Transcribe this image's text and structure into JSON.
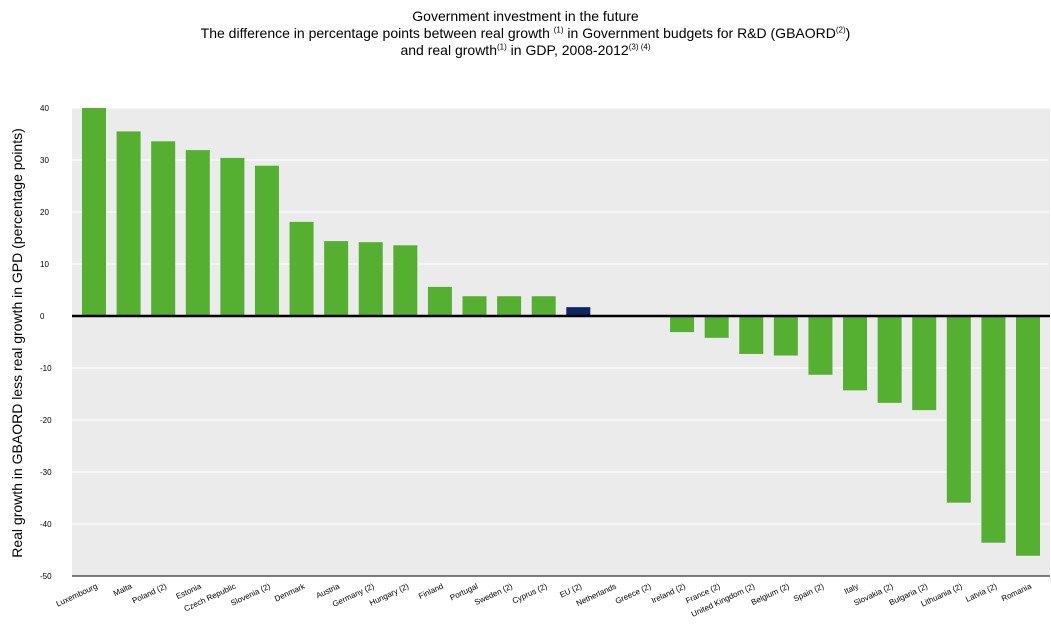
{
  "title": {
    "line1": "Government investment in the future",
    "line2_a": "The difference in percentage points between real growth",
    "line2_sup1": "(1)",
    "line2_b": "in Government budgets for R&D (GBAORD",
    "line2_sup2": "(2)",
    "line2_c": ")",
    "line3_a": "and real growth",
    "line3_sup1": "(1)",
    "line3_b": "in GDP, 2008-2012",
    "line3_sup2": "(3) (4)"
  },
  "chart_data": {
    "type": "bar",
    "ylabel": "Real growth in GBAORD less real growth in GPD (percentage points)",
    "ylim": [
      -50,
      40
    ],
    "yticks": [
      40,
      30,
      20,
      10,
      0,
      -10,
      -20,
      -30,
      -40,
      -50
    ],
    "grid": true,
    "categories": [
      "Luxembourg",
      "Malta",
      "Poland (2)",
      "Estonia",
      "Czech Republic",
      "Slovenia (2)",
      "Denmark",
      "Austria",
      "Germany (2)",
      "Hungary (2)",
      "Finland",
      "Portugal",
      "Sweden (2)",
      "Cyprus (2)",
      "EU (2)",
      "Netherlands",
      "Greece (2)",
      "Ireland (2)",
      "France (2)",
      "United Kingdom (2)",
      "Belgium (2)",
      "Spain (2)",
      "Italy",
      "Slovakia (2)",
      "Bulgaria (2)",
      "Lithuania (2)",
      "Latvia (2)",
      "Romania"
    ],
    "values": [
      40,
      35.5,
      33.6,
      31.9,
      30.4,
      28.9,
      18.1,
      14.4,
      14.2,
      13.6,
      5.6,
      3.8,
      3.8,
      3.8,
      1.7,
      0,
      -0.2,
      -3.1,
      -4.2,
      -7.3,
      -7.6,
      -11.3,
      -14.3,
      -16.7,
      -18.1,
      -35.9,
      -43.6,
      -46.1
    ],
    "colors": {
      "default": "#55b031",
      "highlight": "#0d2466",
      "highlight_category": "EU (2)",
      "plot_background": "#ebebeb",
      "gridline": "#ffffff",
      "zero_line": "#000000"
    }
  }
}
